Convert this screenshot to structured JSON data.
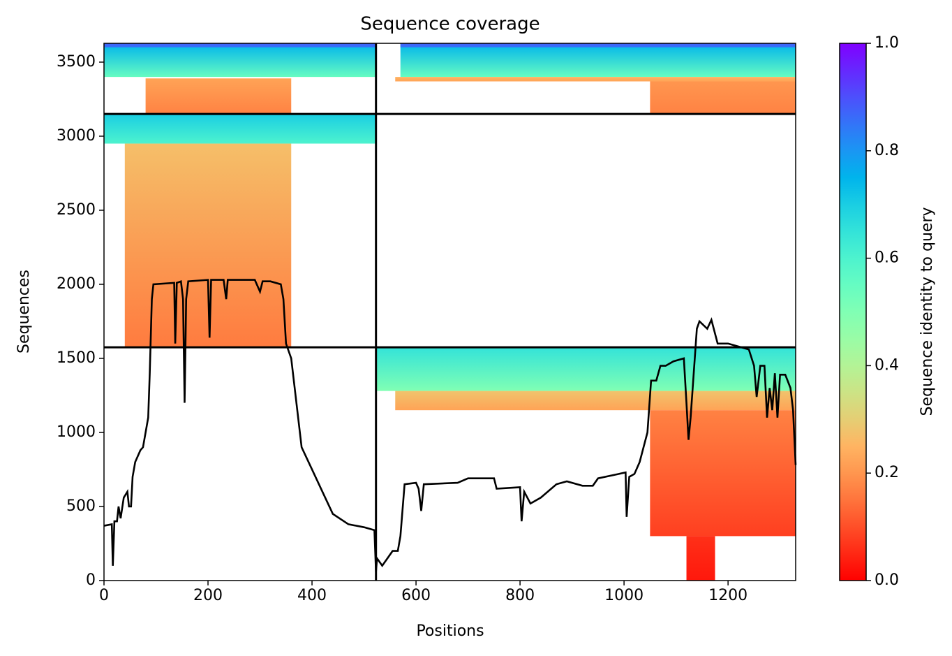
{
  "chart_data": {
    "type": "coverage",
    "title": "Sequence coverage",
    "x_label": "Positions",
    "y_label": "Sequences",
    "colorbar_label": "Sequence identity to query",
    "xlim": [
      0,
      1330
    ],
    "ylim": [
      0,
      3627
    ],
    "xticks": [
      0,
      200,
      400,
      600,
      800,
      1000,
      1200
    ],
    "yticks": [
      0,
      500,
      1000,
      1500,
      2000,
      2500,
      3000,
      3500
    ],
    "clim": [
      0,
      1
    ],
    "cticks": [
      {
        "value": 0,
        "label": "0.0"
      },
      {
        "value": 0.2,
        "label": "0.2"
      },
      {
        "value": 0.4,
        "label": "0.4"
      },
      {
        "value": 0.6,
        "label": "0.6"
      },
      {
        "value": 0.8,
        "label": "0.8"
      },
      {
        "value": 1,
        "label": "1.0"
      }
    ],
    "colormap": "rainbow_r",
    "dividers": {
      "x": [
        523
      ],
      "y": [
        1575,
        3150
      ]
    },
    "blocks": [
      {
        "x": [
          0,
          523
        ],
        "y": [
          3400,
          3627
        ],
        "identity": [
          0.55,
          0.75
        ]
      },
      {
        "x": [
          0,
          523
        ],
        "y": [
          3600,
          3627
        ],
        "identity": [
          0.85,
          0.88
        ]
      },
      {
        "x": [
          80,
          360
        ],
        "y": [
          3150,
          3390
        ],
        "identity": [
          0.17,
          0.22
        ]
      },
      {
        "x": [
          0,
          523
        ],
        "y": [
          2950,
          3150
        ],
        "identity": [
          0.6,
          0.7
        ]
      },
      {
        "x": [
          40,
          360
        ],
        "y": [
          1575,
          2950
        ],
        "identity": [
          0.16,
          0.27
        ]
      },
      {
        "x": [
          570,
          1330
        ],
        "y": [
          3400,
          3627
        ],
        "identity": [
          0.55,
          0.75
        ]
      },
      {
        "x": [
          570,
          1330
        ],
        "y": [
          3600,
          3627
        ],
        "identity": [
          0.85,
          0.88
        ]
      },
      {
        "x": [
          560,
          1330
        ],
        "y": [
          3370,
          3400
        ],
        "identity": [
          0.22,
          0.25
        ]
      },
      {
        "x": [
          1050,
          1330
        ],
        "y": [
          3150,
          3370
        ],
        "identity": [
          0.17,
          0.2
        ]
      },
      {
        "x": [
          523,
          1330
        ],
        "y": [
          1280,
          1575
        ],
        "identity": [
          0.5,
          0.65
        ]
      },
      {
        "x": [
          560,
          1330
        ],
        "y": [
          1150,
          1280
        ],
        "identity": [
          0.22,
          0.28
        ]
      },
      {
        "x": [
          1050,
          1330
        ],
        "y": [
          300,
          1150
        ],
        "identity": [
          0.08,
          0.17
        ]
      },
      {
        "x": [
          1120,
          1175
        ],
        "y": [
          0,
          300
        ],
        "identity": [
          0.03,
          0.06
        ]
      }
    ],
    "series": [
      {
        "name": "coverage",
        "color": "#000000",
        "x": [
          0,
          15,
          17,
          20,
          25,
          28,
          32,
          38,
          45,
          48,
          52,
          55,
          60,
          70,
          75,
          80,
          85,
          88,
          92,
          95,
          135,
          137,
          140,
          148,
          152,
          155,
          158,
          162,
          200,
          203,
          206,
          230,
          235,
          238,
          290,
          300,
          305,
          320,
          340,
          345,
          350,
          360,
          380,
          400,
          420,
          440,
          470,
          500,
          520,
          523,
          525,
          535,
          545,
          555,
          565,
          570,
          578,
          600,
          605,
          610,
          615,
          680,
          700,
          750,
          755,
          800,
          803,
          808,
          820,
          840,
          870,
          890,
          920,
          940,
          950,
          990,
          1003,
          1005,
          1010,
          1020,
          1030,
          1045,
          1052,
          1062,
          1070,
          1080,
          1095,
          1115,
          1120,
          1124,
          1128,
          1140,
          1145,
          1160,
          1168,
          1180,
          1200,
          1220,
          1240,
          1250,
          1255,
          1262,
          1270,
          1275,
          1280,
          1285,
          1290,
          1295,
          1300,
          1310,
          1320,
          1325,
          1330
        ],
        "values": [
          370,
          380,
          100,
          400,
          400,
          500,
          420,
          560,
          600,
          500,
          500,
          700,
          800,
          880,
          900,
          1000,
          1100,
          1400,
          1900,
          2000,
          2010,
          1600,
          2010,
          2020,
          1900,
          1200,
          1900,
          2020,
          2030,
          1640,
          2030,
          2030,
          1900,
          2030,
          2030,
          1950,
          2020,
          2020,
          2000,
          1900,
          1600,
          1500,
          900,
          750,
          600,
          450,
          380,
          360,
          340,
          60,
          150,
          100,
          150,
          200,
          200,
          300,
          650,
          660,
          620,
          470,
          650,
          660,
          690,
          690,
          620,
          630,
          400,
          600,
          520,
          560,
          650,
          670,
          640,
          640,
          690,
          720,
          730,
          430,
          700,
          720,
          800,
          1000,
          1350,
          1350,
          1450,
          1450,
          1480,
          1500,
          1200,
          950,
          1100,
          1700,
          1750,
          1700,
          1760,
          1600,
          1600,
          1580,
          1560,
          1450,
          1240,
          1450,
          1450,
          1100,
          1300,
          1150,
          1400,
          1100,
          1390,
          1390,
          1300,
          1150,
          780
        ]
      }
    ]
  }
}
